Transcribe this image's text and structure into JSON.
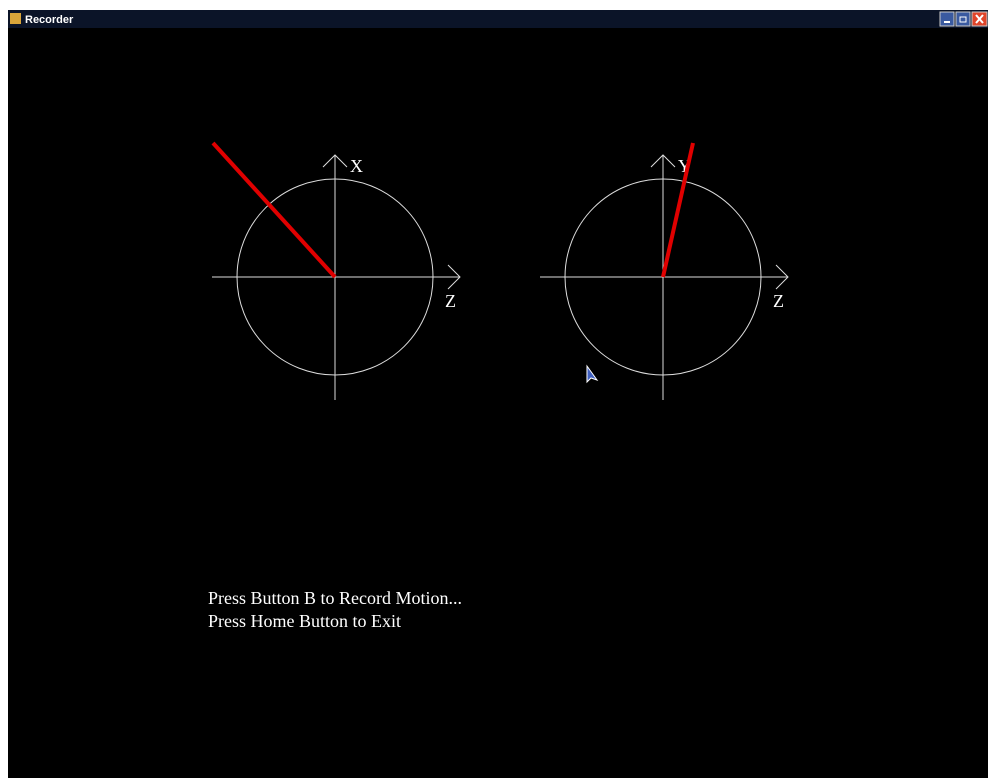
{
  "window": {
    "title": "Recorder"
  },
  "dials": [
    {
      "vertical_label": "X",
      "horizontal_label": "Z"
    },
    {
      "vertical_label": "Y",
      "horizontal_label": "Z"
    }
  ],
  "instructions": [
    "Press Button B to Record Motion...",
    "Press Home Button to Exit"
  ]
}
